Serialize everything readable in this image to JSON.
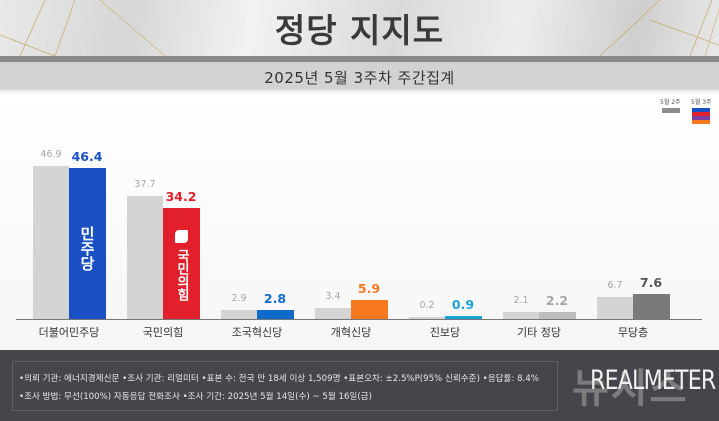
{
  "header": {
    "title": "정당 지지도",
    "subtitle": "2025년 5월 3주차 주간집계"
  },
  "legend": {
    "prev_label": "5월 2주",
    "cur_label": "5월 3주",
    "prev_color": "#8c8c8c",
    "cur_colors": [
      "#1b4fc4",
      "#e2202c",
      "#7b3fa1",
      "#f6781f"
    ]
  },
  "chart_data": {
    "type": "bar",
    "title": "정당 지지도",
    "subtitle": "2025년 5월 3주차 주간집계",
    "xlabel": "",
    "ylabel": "",
    "ylim": [
      0,
      50
    ],
    "grid": false,
    "legend_position": "top-right",
    "categories": [
      "더불어민주당",
      "국민의힘",
      "조국혁신당",
      "개혁신당",
      "진보당",
      "기타 정당",
      "무당층"
    ],
    "series": [
      {
        "name": "5월 2주",
        "values": [
          46.9,
          37.7,
          2.9,
          3.4,
          0.2,
          2.1,
          6.7
        ],
        "color": "#d4d4d4"
      },
      {
        "name": "5월 3주",
        "values": [
          46.4,
          34.2,
          2.8,
          5.9,
          0.9,
          2.2,
          7.6
        ],
        "colors": [
          "#1b4fc4",
          "#e2202c",
          "#0f6ac9",
          "#f6781f",
          "#1aa3d6",
          "#bdbdbd",
          "#7a7a7a"
        ]
      }
    ],
    "value_labels": {
      "prev": [
        "46.9",
        "37.7",
        "2.9",
        "3.4",
        "0.2",
        "2.1",
        "6.7"
      ],
      "cur": [
        "46.4",
        "34.2",
        "2.8",
        "5.9",
        "0.9",
        "2.2",
        "7.6"
      ]
    },
    "bar_logos": [
      "민주당",
      "국민의힘",
      "",
      "",
      "",
      "",
      ""
    ]
  },
  "footer": {
    "line1": "•의뢰 기관: 에너지경제신문  •조사 기관: 리얼미터 •표본 수: 전국 만 18세 이상 1,509명 •표본오차: ±2.5%P(95% 신뢰수준) •응답률: 8.4%",
    "line2": "•조사 방법: 무선(100%) 자동응답 전화조사 •조사 기간: 2025년 5월 14일(수) ~ 5월 16일(금)",
    "brand": "REALMETER",
    "watermark": "뉴시스"
  }
}
